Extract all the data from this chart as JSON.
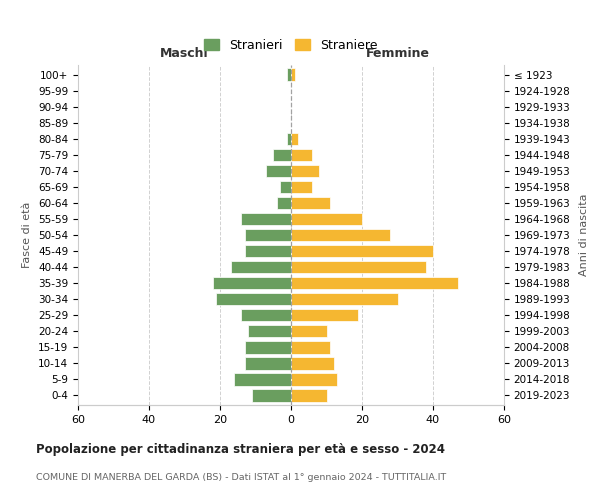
{
  "age_groups": [
    "0-4",
    "5-9",
    "10-14",
    "15-19",
    "20-24",
    "25-29",
    "30-34",
    "35-39",
    "40-44",
    "45-49",
    "50-54",
    "55-59",
    "60-64",
    "65-69",
    "70-74",
    "75-79",
    "80-84",
    "85-89",
    "90-94",
    "95-99",
    "100+"
  ],
  "birth_years": [
    "2019-2023",
    "2014-2018",
    "2009-2013",
    "2004-2008",
    "1999-2003",
    "1994-1998",
    "1989-1993",
    "1984-1988",
    "1979-1983",
    "1974-1978",
    "1969-1973",
    "1964-1968",
    "1959-1963",
    "1954-1958",
    "1949-1953",
    "1944-1948",
    "1939-1943",
    "1934-1938",
    "1929-1933",
    "1924-1928",
    "≤ 1923"
  ],
  "males": [
    11,
    16,
    13,
    13,
    12,
    14,
    21,
    22,
    17,
    13,
    13,
    14,
    4,
    3,
    7,
    5,
    1,
    0,
    0,
    0,
    1
  ],
  "females": [
    10,
    13,
    12,
    11,
    10,
    19,
    30,
    47,
    38,
    40,
    28,
    20,
    11,
    6,
    8,
    6,
    2,
    0,
    0,
    0,
    1
  ],
  "male_color": "#6a9e5f",
  "female_color": "#f5b731",
  "male_label": "Stranieri",
  "female_label": "Straniere",
  "title": "Popolazione per cittadinanza straniera per età e sesso - 2024",
  "subtitle": "COMUNE DI MANERBA DEL GARDA (BS) - Dati ISTAT al 1° gennaio 2024 - TUTTITALIA.IT",
  "xlabel_left": "Maschi",
  "xlabel_right": "Femmine",
  "ylabel_left": "Fasce di età",
  "ylabel_right": "Anni di nascita",
  "xlim": 60,
  "bg_color": "#ffffff",
  "grid_color": "#cccccc"
}
